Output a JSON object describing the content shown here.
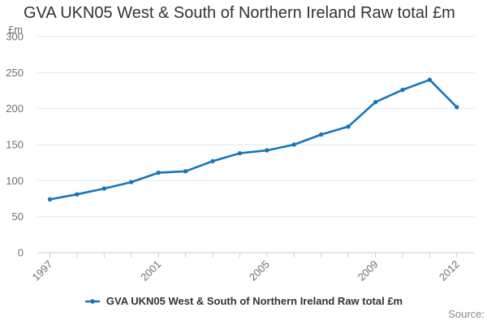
{
  "title": "GVA UKN05 West & South of Northern Ireland Raw total £m",
  "y_axis_unit_label": "£m",
  "legend": {
    "label": "GVA UKN05 West & South of Northern Ireland Raw total £m",
    "marker": "line-with-dot-icon"
  },
  "source": {
    "label": "Source:"
  },
  "colors": {
    "line": "#1776bb",
    "grid": "#e6e6e6",
    "axis": "#c3cfe0",
    "tick_label": "#6f6f6f",
    "title_text": "#333333",
    "legend_text": "#333333",
    "source_text": "#8a8a8a",
    "background": "#ffffff"
  },
  "chart_data": {
    "type": "line",
    "title": "GVA UKN05 West & South of Northern Ireland Raw total £m",
    "x": [
      1997,
      1998,
      1999,
      2000,
      2001,
      2002,
      2003,
      2004,
      2005,
      2006,
      2007,
      2008,
      2009,
      2010,
      2011,
      2012
    ],
    "series": [
      {
        "name": "GVA UKN05 West & South of Northern Ireland Raw total £m",
        "values": [
          74,
          81,
          89,
          98,
          111,
          113,
          127,
          138,
          142,
          150,
          164,
          175,
          209,
          226,
          240,
          202
        ]
      }
    ],
    "xlabel": "",
    "ylabel": "£m",
    "ylim": [
      0,
      300
    ],
    "yticks": [
      0,
      50,
      100,
      150,
      200,
      250,
      300
    ],
    "labeled_xticks": [
      1997,
      2001,
      2005,
      2009,
      2012
    ],
    "grid": true,
    "marker": "circle",
    "legend_position": "bottom"
  }
}
